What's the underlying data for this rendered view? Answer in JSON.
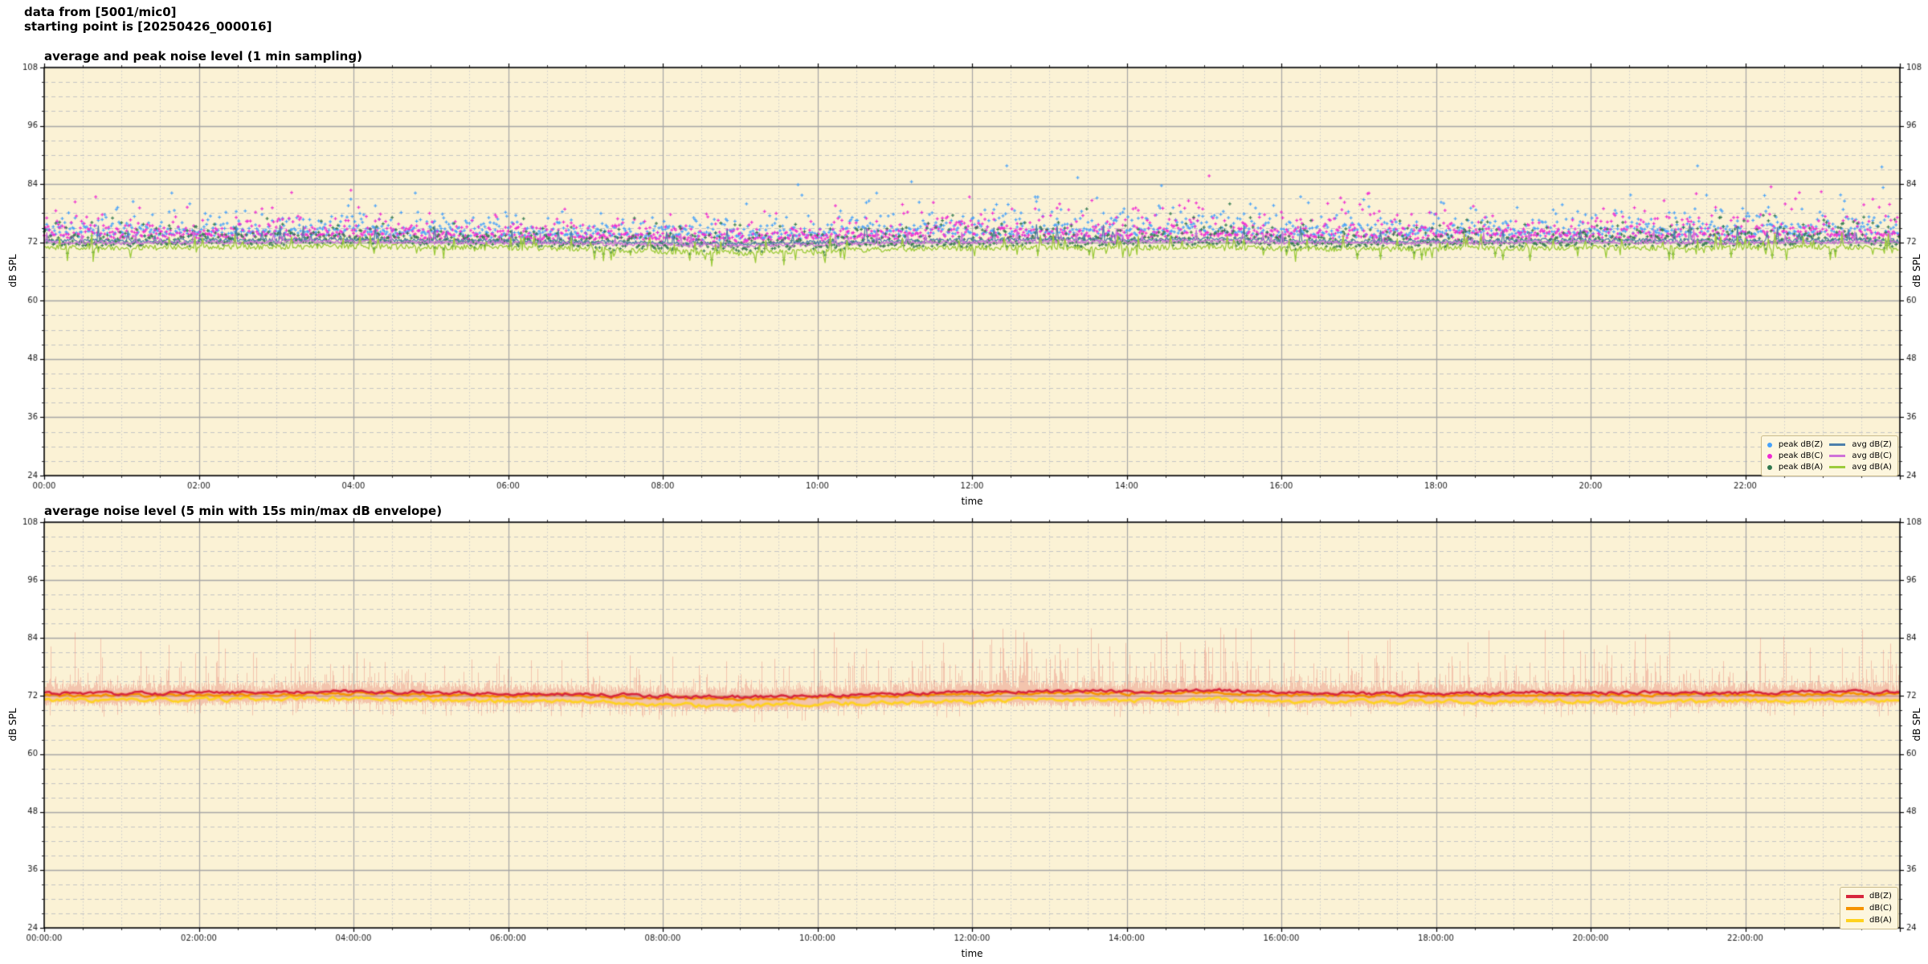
{
  "header": {
    "line1": "data from [5001/mic0]",
    "line2": "starting point is [20250426_000016]"
  },
  "colors": {
    "figure_bg": "#ffffff",
    "plot_bg": "#fbf2d5",
    "grid_major": "#a6a6a6",
    "grid_minor": "#c4c4c4",
    "grid_minor_v": "#cccccc",
    "frame": "#000000",
    "tick_label": "#1a1a1a"
  },
  "chart_data": {
    "charts": [
      {
        "type": "scatter",
        "title": "average and peak noise level (1 min sampling)",
        "xlabel": "time",
        "ylabel_left": "dB SPL",
        "ylabel_right": "dB SPL",
        "ylim": [
          24,
          108
        ],
        "yticks": [
          24,
          36,
          48,
          60,
          72,
          84,
          96,
          108
        ],
        "ytick_minor_step": 3,
        "x_hours": 24,
        "xtick_step_h": 2,
        "xtick_minor_h": 0.5,
        "xtick_labels": [
          "00:00",
          "02:00",
          "04:00",
          "06:00",
          "08:00",
          "10:00",
          "12:00",
          "14:00",
          "16:00",
          "18:00",
          "20:00",
          "22:00"
        ],
        "grid": true,
        "legend_position": "lower right",
        "activity_hourly": [
          0.5,
          0.45,
          0.5,
          0.55,
          0.5,
          0.4,
          0.35,
          0.3,
          0.45,
          0.5,
          0.6,
          0.75,
          0.85,
          0.95,
          0.9,
          0.85,
          0.7,
          0.6,
          0.55,
          0.55,
          0.65,
          0.75,
          0.8,
          0.75,
          0.6
        ],
        "series": [
          {
            "name": "avg dB(Z)",
            "kind": "line",
            "color": "#4d80ab",
            "lw": 1.3,
            "noise": 0.42,
            "spike_p": 0.035,
            "spike_amp": 2.8,
            "seed": 11,
            "hourly": [
              72.4,
              72.3,
              72.4,
              72.5,
              72.6,
              72.4,
              72.3,
              72.1,
              71.9,
              71.7,
              72.0,
              72.3,
              72.5,
              72.7,
              72.5,
              72.8,
              72.4,
              72.2,
              72.3,
              72.4,
              72.5,
              72.4,
              72.3,
              72.5,
              72.4
            ]
          },
          {
            "name": "avg dB(C)",
            "kind": "line",
            "color": "#cf72d8",
            "lw": 1.3,
            "noise": 0.4,
            "spike_p": 0.03,
            "spike_amp": 2.4,
            "seed": 12,
            "hourly": [
              72.0,
              71.9,
              72.0,
              72.1,
              72.2,
              72.0,
              71.9,
              71.8,
              71.5,
              71.3,
              71.6,
              71.9,
              72.1,
              72.3,
              72.1,
              72.4,
              72.0,
              71.9,
              71.9,
              72.0,
              72.1,
              72.0,
              71.9,
              72.1,
              72.0
            ]
          },
          {
            "name": "avg dB(A)",
            "kind": "line",
            "color": "#9ccb3b",
            "lw": 1.3,
            "noise": 0.55,
            "spike_p": 0.05,
            "spike_amp": 2.2,
            "spike_down": true,
            "seed": 13,
            "hourly": [
              71.0,
              70.9,
              71.0,
              71.1,
              71.2,
              71.0,
              70.9,
              70.7,
              70.1,
              69.8,
              70.2,
              70.6,
              70.8,
              71.0,
              70.8,
              71.1,
              70.7,
              70.6,
              70.7,
              70.8,
              70.9,
              70.8,
              70.8,
              71.0,
              70.8
            ]
          },
          {
            "name": "peak dB(Z)",
            "kind": "scatter",
            "color": "#45a1fb",
            "ref": 0,
            "off_min": 1.0,
            "exp_base": 1.6,
            "exp_act": 2.6,
            "max_off": 15,
            "seed": 21
          },
          {
            "name": "peak dB(C)",
            "kind": "scatter",
            "color": "#ef29d2",
            "ref": 1,
            "off_min": 0.9,
            "exp_base": 1.5,
            "exp_act": 2.2,
            "max_off": 14,
            "seed": 22
          },
          {
            "name": "peak dB(A)",
            "kind": "scatter",
            "color": "#31784f",
            "ref": 2,
            "off_min": 0.7,
            "exp_base": 1.2,
            "exp_act": 1.3,
            "max_off": 10,
            "seed": 23
          }
        ],
        "legend": {
          "peak": [
            {
              "label": "peak dB(Z)",
              "color": "#45a1fb"
            },
            {
              "label": "peak dB(C)",
              "color": "#ef29d2"
            },
            {
              "label": "peak dB(A)",
              "color": "#31784f"
            }
          ],
          "avg": [
            {
              "label": "avg dB(Z)",
              "color": "#4d80ab"
            },
            {
              "label": "avg dB(C)",
              "color": "#cf72d8"
            },
            {
              "label": "avg dB(A)",
              "color": "#9ccb3b"
            }
          ]
        }
      },
      {
        "type": "line",
        "title": "average noise level (5 min with 15s min/max dB envelope)",
        "xlabel": "time",
        "ylabel_left": "dB SPL",
        "ylabel_right": "dB SPL",
        "ylim": [
          24,
          108
        ],
        "yticks": [
          24,
          36,
          48,
          60,
          72,
          84,
          96,
          108
        ],
        "ytick_minor_step": 3,
        "x_hours": 24,
        "xtick_step_h": 2,
        "xtick_minor_h": 0.5,
        "xtick_labels": [
          "00:00:00",
          "02:00:00",
          "04:00:00",
          "06:00:00",
          "08:00:00",
          "10:00:00",
          "12:00:00",
          "14:00:00",
          "16:00:00",
          "18:00:00",
          "20:00:00",
          "22:00:00"
        ],
        "grid": true,
        "legend_position": "lower right",
        "activity_hourly": [
          0.5,
          0.45,
          0.5,
          0.55,
          0.5,
          0.4,
          0.35,
          0.3,
          0.45,
          0.5,
          0.6,
          0.75,
          0.85,
          0.95,
          0.9,
          0.85,
          0.7,
          0.6,
          0.55,
          0.55,
          0.65,
          0.75,
          0.8,
          0.75,
          0.6
        ],
        "series": [
          {
            "name": "dB(Z)",
            "color": "#d7263d",
            "lw": 2.3,
            "noise": 0.28,
            "seed": 31,
            "hourly": [
              72.6,
              72.5,
              72.6,
              72.8,
              73.0,
              72.7,
              72.5,
              72.4,
              72.0,
              71.8,
              72.1,
              72.5,
              72.8,
              73.1,
              72.9,
              73.2,
              72.8,
              72.5,
              72.5,
              72.6,
              72.7,
              72.6,
              72.6,
              72.9,
              72.7
            ]
          },
          {
            "name": "dB(C)",
            "color": "#f59300",
            "lw": 2.3,
            "noise": 0.26,
            "seed": 32,
            "hourly": [
              72.2,
              72.1,
              72.2,
              72.4,
              72.6,
              72.3,
              72.1,
              72.0,
              71.6,
              71.4,
              71.7,
              72.1,
              72.4,
              72.7,
              72.5,
              72.8,
              72.4,
              72.1,
              72.1,
              72.2,
              72.3,
              72.2,
              72.2,
              72.5,
              72.3
            ]
          },
          {
            "name": "dB(A)",
            "color": "#ffd21e",
            "lw": 2.3,
            "noise": 0.34,
            "seed": 33,
            "hourly": [
              71.2,
              71.1,
              71.2,
              71.4,
              71.5,
              71.2,
              71.0,
              70.9,
              70.2,
              69.9,
              70.3,
              70.7,
              70.9,
              71.2,
              71.0,
              71.3,
              70.9,
              70.8,
              70.8,
              70.9,
              71.0,
              70.9,
              70.9,
              71.2,
              71.0
            ]
          }
        ],
        "envelope": {
          "color": "rgba(233,128,112,0.40)",
          "spike_p_base": 0.18,
          "spike_p_act": 0.22,
          "spike_amp_base": 1.0,
          "spike_amp_act": 2.9,
          "small_min": 0.4,
          "small_range": 1.8,
          "max_spike": 13,
          "seed": 41
        },
        "legend": {
          "lines": [
            {
              "label": "dB(Z)",
              "color": "#d7263d"
            },
            {
              "label": "dB(C)",
              "color": "#f59300"
            },
            {
              "label": "dB(A)",
              "color": "#ffd21e"
            }
          ]
        }
      }
    ]
  }
}
